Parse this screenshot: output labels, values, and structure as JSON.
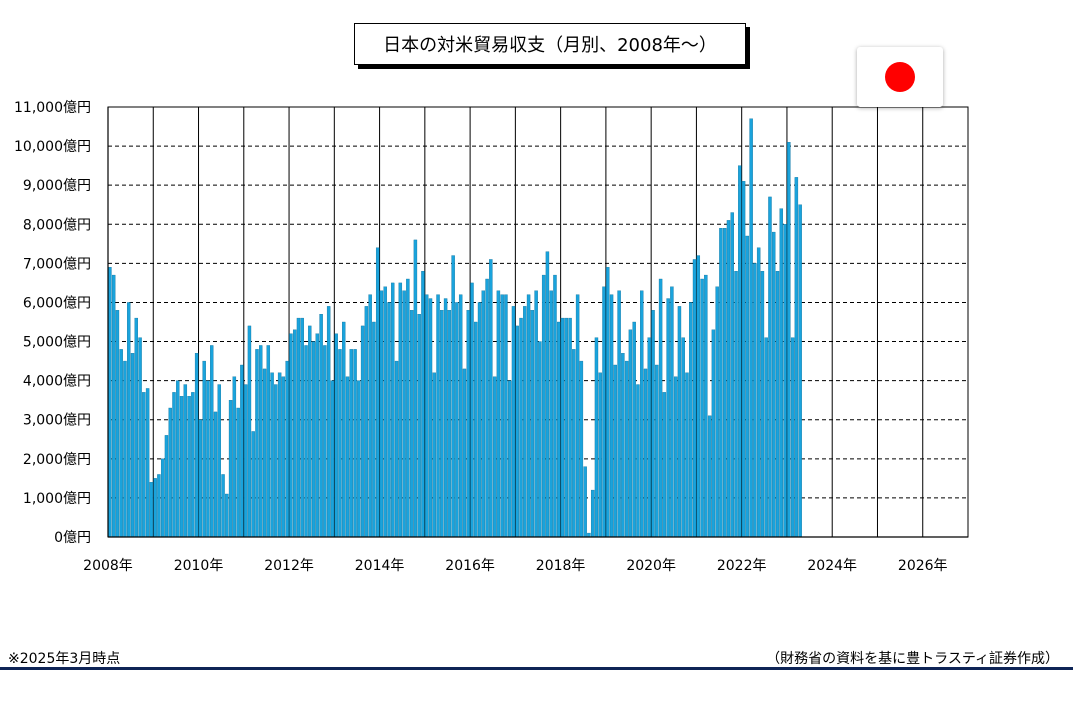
{
  "chart_data": {
    "type": "bar",
    "title": "日本の対米貿易収支（月別、2008年～）",
    "x_start": "2008-01",
    "x_end": "2026-12",
    "x_tick_labels": [
      "2008年",
      "2010年",
      "2012年",
      "2014年",
      "2016年",
      "2018年",
      "2020年",
      "2022年",
      "2024年",
      "2026年"
    ],
    "y_tick_labels": [
      "0億円",
      "1,000億円",
      "2,000億円",
      "3,000億円",
      "4,000億円",
      "5,000億円",
      "6,000億円",
      "7,000億円",
      "8,000億円",
      "9,000億円",
      "10,000億円",
      "11,000億円"
    ],
    "ylim": [
      0,
      11000
    ],
    "y_unit": "億円",
    "grid": true,
    "bar_color": "#1aa3dc",
    "series": [
      {
        "values": [
          6900,
          6700,
          5800,
          4800,
          4500,
          6000,
          4700,
          5600,
          5100,
          3700,
          3800,
          1400,
          1500,
          1600,
          2000,
          2600,
          3300,
          3700,
          4000,
          3600,
          3900,
          3600,
          3700,
          4700,
          3000,
          4500,
          4000,
          4900,
          3200,
          3900,
          1600,
          1100,
          3500,
          4100,
          3300,
          4400,
          3900,
          5400,
          2700,
          4800,
          4900,
          4300,
          4900,
          4200,
          3900,
          4200,
          4100,
          4500,
          5200,
          5300,
          5600,
          5600,
          4900,
          5400,
          5000,
          5200,
          5700,
          4900,
          5900,
          4000,
          5200,
          4800,
          5500,
          4100,
          4800,
          4800,
          4000,
          5400,
          5900,
          6200,
          5500,
          7400,
          6300,
          6400,
          6000,
          6500,
          4500,
          6500,
          6300,
          6600,
          5800,
          7600,
          5700,
          6800,
          6200,
          6100,
          4200,
          6200,
          5800,
          6100,
          5800,
          7200,
          6000,
          6200,
          4300,
          5800,
          6500,
          5500,
          6000,
          6300,
          6600,
          7100,
          4100,
          6300,
          6200,
          6200,
          4000,
          5900,
          5400,
          5600,
          5900,
          6200,
          5800,
          6300,
          5000,
          6700,
          7300,
          6300,
          6700,
          5500,
          5600,
          5600,
          5600,
          4800,
          6200,
          4500,
          1800,
          100,
          1200,
          5100,
          4200,
          6400,
          6900,
          6200,
          4400,
          6300,
          4700,
          4500,
          5300,
          5500,
          3900,
          6300,
          4300,
          5100,
          5800,
          4400,
          6600,
          3700,
          6100,
          6400,
          4100,
          5900,
          5100,
          4200,
          6000,
          7100,
          7200,
          6600,
          6700,
          3100,
          5300,
          6400,
          7900,
          7900,
          8100,
          8300,
          6800,
          9500,
          9100,
          7700,
          10700,
          7000,
          7400,
          6800,
          5100,
          8700,
          7800,
          6800,
          8400,
          8000,
          10100,
          5100,
          9200,
          8500
        ]
      }
    ]
  },
  "footer": {
    "note_left": "※2025年3月時点",
    "note_right": "（財務省の資料を基に豊トラスティ証券作成）"
  },
  "flag_icon": "japan-flag-icon"
}
